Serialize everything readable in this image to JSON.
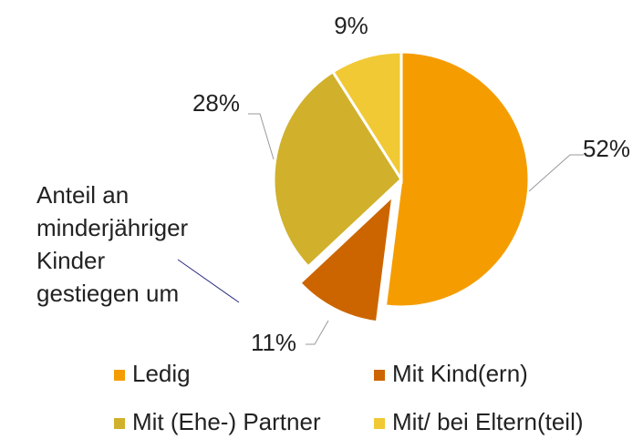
{
  "chart_data": {
    "type": "pie",
    "categories": [
      "Ledig",
      "Mit Kind(ern)",
      "Mit (Ehe-) Partner",
      "Mit/ bei Eltern(teil)"
    ],
    "values": [
      52,
      11,
      28,
      9
    ],
    "value_labels": [
      "52%",
      "11%",
      "28%",
      "9%"
    ],
    "colors": [
      "#f59d00",
      "#cc6500",
      "#d1b02c",
      "#f1c935"
    ],
    "exploded": [
      false,
      true,
      false,
      false
    ],
    "annotation": [
      "Anteil an",
      "minderjähriger",
      "Kinder",
      "gestiegen um"
    ],
    "legend": "bottom"
  }
}
